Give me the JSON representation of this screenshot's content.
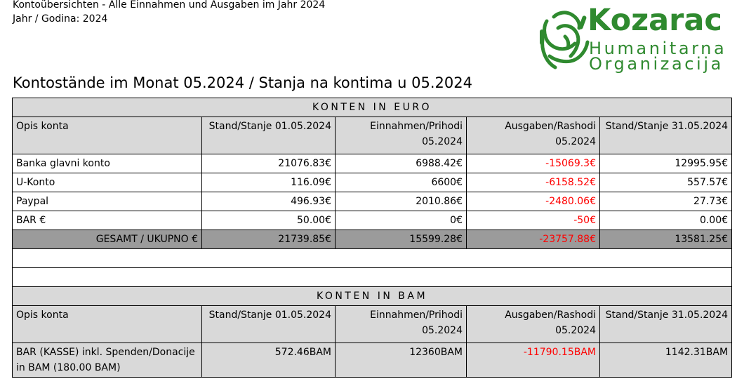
{
  "header": {
    "line1": "Kontoübersichten - Alle Einnahmen und Ausgaben im Jahr 2024",
    "line2": "Jahr / Godina: 2024"
  },
  "logo": {
    "name": "Kozarac",
    "subtitle1": "Humanitarna",
    "subtitle2": "Organizacija",
    "color": "#2f8a2f"
  },
  "title": "Kontostände im Monat 05.2024 / Stanja na kontima u 05.2024",
  "euro": {
    "band": "KONTEN IN EURO",
    "columns": [
      "Opis konta",
      "Stand/Stanje 01.05.2024",
      "Einnahmen/Prihodi 05.2024",
      "Ausgaben/Rashodi 05.2024",
      "Stand/Stanje 31.05.2024"
    ],
    "rows": [
      {
        "name": "Banka glavni konto",
        "start": "21076.83€",
        "income": "6988.42€",
        "expense": "-15069.3€",
        "end": "12995.95€"
      },
      {
        "name": "U-Konto",
        "start": "116.09€",
        "income": "6600€",
        "expense": "-6158.52€",
        "end": "557.57€"
      },
      {
        "name": "Paypal",
        "start": "496.93€",
        "income": "2010.86€",
        "expense": "-2480.06€",
        "end": "27.73€"
      },
      {
        "name": "BAR €",
        "start": "50.00€",
        "income": "0€",
        "expense": "-50€",
        "end": "0.00€"
      }
    ],
    "total": {
      "name": "GESAMT / UKUPNO €",
      "start": "21739.85€",
      "income": "15599.28€",
      "expense": "-23757.88€",
      "end": "13581.25€"
    }
  },
  "bam": {
    "band": "KONTEN IN BAM",
    "columns": [
      "Opis konta",
      "Stand/Stanje 01.05.2024",
      "Einnahmen/Prihodi 05.2024",
      "Ausgaben/Rashodi 05.2024",
      "Stand/Stanje 31.05.2024"
    ],
    "rows": [
      {
        "name": "BAR (KASSE) inkl. Spenden/Donacije in BAM (180.00 BAM)",
        "start": "572.46BAM",
        "income": "12360BAM",
        "expense": "-11790.15BAM",
        "end": "1142.31BAM"
      }
    ]
  },
  "colors": {
    "negative": "#ff0000",
    "header_gray": "#d9d9d9",
    "total_gray": "#9b9b9b"
  }
}
